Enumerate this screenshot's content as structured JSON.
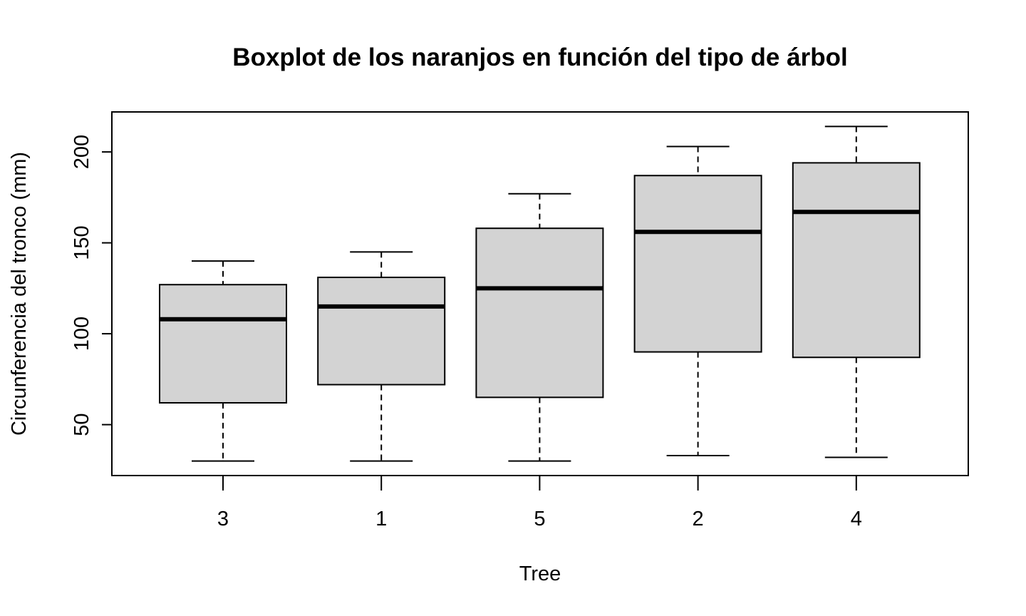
{
  "chart_data": {
    "type": "boxplot",
    "title": "Boxplot de los naranjos en función del tipo de árbol",
    "xlabel": "Tree",
    "ylabel": "Circunferencia del tronco (mm)",
    "ylim": [
      22,
      222
    ],
    "yticks": [
      50,
      100,
      150,
      200
    ],
    "grid": false,
    "box_fill": "#d3d3d3",
    "categories": [
      "3",
      "1",
      "5",
      "2",
      "4"
    ],
    "boxes": [
      {
        "category": "3",
        "min": 30,
        "q1": 62,
        "median": 108,
        "q3": 127,
        "max": 140
      },
      {
        "category": "1",
        "min": 30,
        "q1": 72,
        "median": 115,
        "q3": 131,
        "max": 145
      },
      {
        "category": "5",
        "min": 30,
        "q1": 65,
        "median": 125,
        "q3": 158,
        "max": 177
      },
      {
        "category": "2",
        "min": 33,
        "q1": 90,
        "median": 156,
        "q3": 187,
        "max": 203
      },
      {
        "category": "4",
        "min": 32,
        "q1": 87,
        "median": 167,
        "q3": 194,
        "max": 214
      }
    ]
  }
}
